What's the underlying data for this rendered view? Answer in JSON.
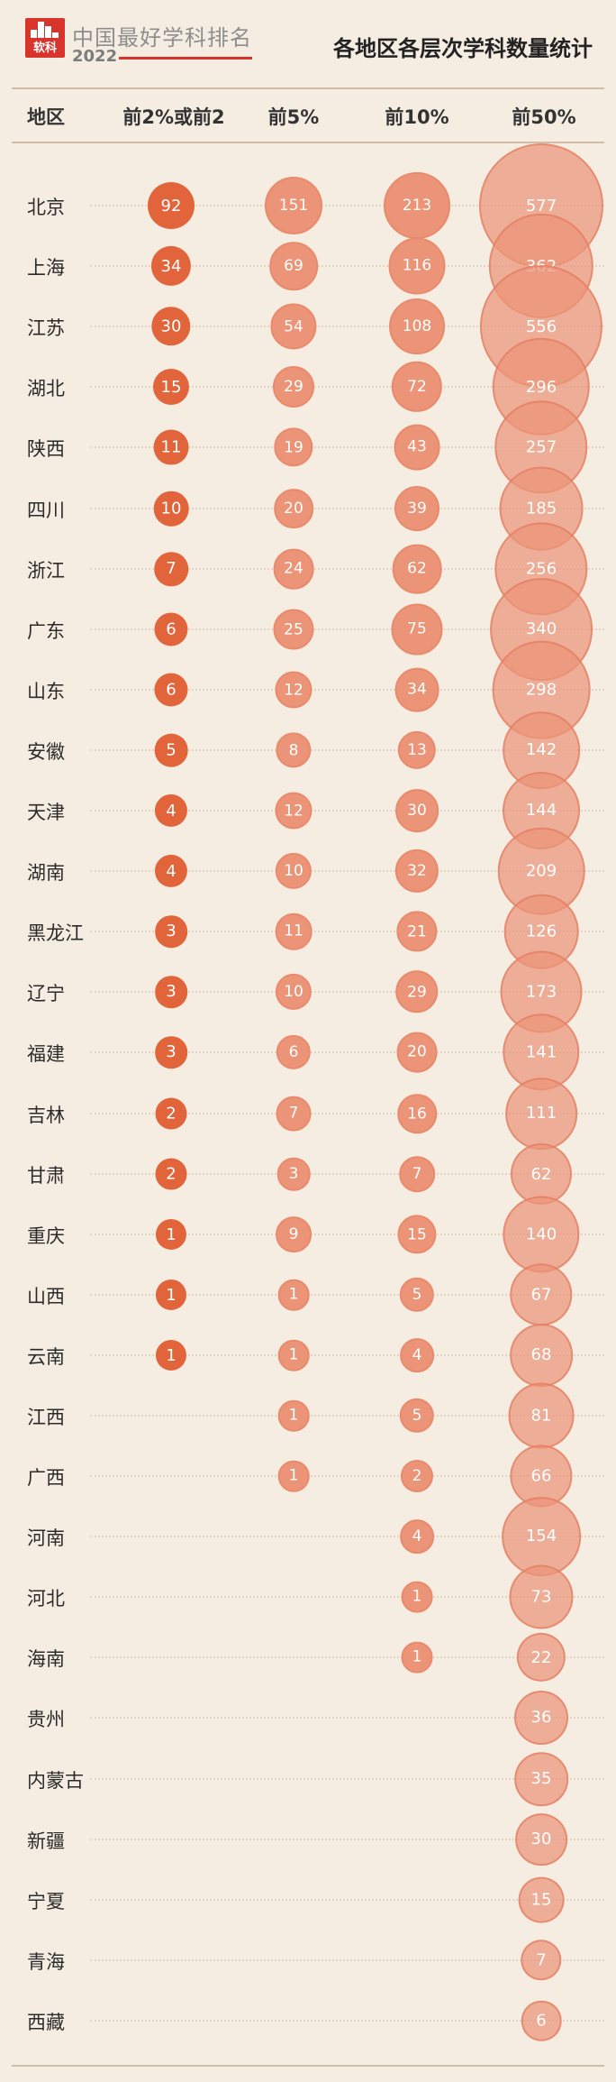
{
  "header": {
    "logo_text": "软科",
    "brand": "中国最好学科排名",
    "year": "2022",
    "title": "各地区各层次学科数量统计"
  },
  "colors": {
    "top2": "#e2643a",
    "lighter": "#ec9478",
    "accent": "#d9342b",
    "background": "#f5ede2"
  },
  "chart_data": {
    "type": "table",
    "columns": [
      "地区",
      "前2%或前2",
      "前5%",
      "前10%",
      "前50%"
    ],
    "rows": [
      {
        "region": "北京",
        "top2": "92",
        "top5": "151",
        "top10": "213",
        "top50": "577"
      },
      {
        "region": "上海",
        "top2": "34",
        "top5": "69",
        "top10": "116",
        "top50": "362"
      },
      {
        "region": "江苏",
        "top2": "30",
        "top5": "54",
        "top10": "108",
        "top50": "556"
      },
      {
        "region": "湖北",
        "top2": "15",
        "top5": "29",
        "top10": "72",
        "top50": "296"
      },
      {
        "region": "陕西",
        "top2": "11",
        "top5": "19",
        "top10": "43",
        "top50": "257"
      },
      {
        "region": "四川",
        "top2": "10",
        "top5": "20",
        "top10": "39",
        "top50": "185"
      },
      {
        "region": "浙江",
        "top2": "7",
        "top5": "24",
        "top10": "62",
        "top50": "256"
      },
      {
        "region": "广东",
        "top2": "6",
        "top5": "25",
        "top10": "75",
        "top50": "340"
      },
      {
        "region": "山东",
        "top2": "6",
        "top5": "12",
        "top10": "34",
        "top50": "298"
      },
      {
        "region": "安徽",
        "top2": "5",
        "top5": "8",
        "top10": "13",
        "top50": "142"
      },
      {
        "region": "天津",
        "top2": "4",
        "top5": "12",
        "top10": "30",
        "top50": "144"
      },
      {
        "region": "湖南",
        "top2": "4",
        "top5": "10",
        "top10": "32",
        "top50": "209"
      },
      {
        "region": "黑龙江",
        "top2": "3",
        "top5": "11",
        "top10": "21",
        "top50": "126"
      },
      {
        "region": "辽宁",
        "top2": "3",
        "top5": "10",
        "top10": "29",
        "top50": "173"
      },
      {
        "region": "福建",
        "top2": "3",
        "top5": "6",
        "top10": "20",
        "top50": "141"
      },
      {
        "region": "吉林",
        "top2": "2",
        "top5": "7",
        "top10": "16",
        "top50": "111"
      },
      {
        "region": "甘肃",
        "top2": "2",
        "top5": "3",
        "top10": "7",
        "top50": "62"
      },
      {
        "region": "重庆",
        "top2": "1",
        "top5": "9",
        "top10": "15",
        "top50": "140"
      },
      {
        "region": "山西",
        "top2": "1",
        "top5": "1",
        "top10": "5",
        "top50": "67"
      },
      {
        "region": "云南",
        "top2": "1",
        "top5": "1",
        "top10": "4",
        "top50": "68"
      },
      {
        "region": "江西",
        "top2": null,
        "top5": "1",
        "top10": "5",
        "top50": "81"
      },
      {
        "region": "广西",
        "top2": null,
        "top5": "1",
        "top10": "2",
        "top50": "66"
      },
      {
        "region": "河南",
        "top2": null,
        "top5": null,
        "top10": "4",
        "top50": "154"
      },
      {
        "region": "河北",
        "top2": null,
        "top5": null,
        "top10": "1",
        "top50": "73"
      },
      {
        "region": "海南",
        "top2": null,
        "top5": null,
        "top10": "1",
        "top50": "22"
      },
      {
        "region": "贵州",
        "top2": null,
        "top5": null,
        "top10": null,
        "top50": "36"
      },
      {
        "region": "内蒙古",
        "top2": null,
        "top5": null,
        "top10": null,
        "top50": "35"
      },
      {
        "region": "新疆",
        "top2": null,
        "top5": null,
        "top10": null,
        "top50": "30"
      },
      {
        "region": "宁夏",
        "top2": null,
        "top5": null,
        "top10": null,
        "top50": "15"
      },
      {
        "region": "青海",
        "top2": null,
        "top5": null,
        "top10": null,
        "top50": "7"
      },
      {
        "region": "西藏",
        "top2": null,
        "top5": null,
        "top10": null,
        "top50": "6"
      }
    ]
  }
}
